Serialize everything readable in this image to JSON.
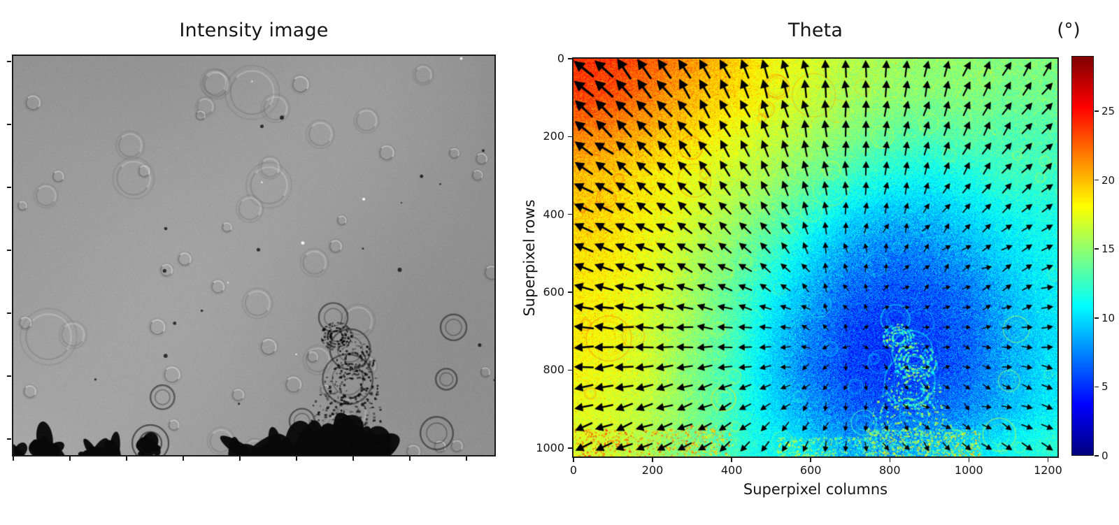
{
  "figure": {
    "background": "#ffffff",
    "description": "Two-panel scientific figure: grayscale intensity image (left) and Theta angle heatmap with quiver arrows and colorbar (right)"
  },
  "left_panel": {
    "title": "Intensity image"
  },
  "right_panel": {
    "title": "Theta",
    "xlabel": "Superpixel columns",
    "ylabel": "Superpixel rows",
    "colorbar_label": "(°)"
  },
  "chart_data": [
    {
      "type": "image",
      "title": "Intensity image",
      "description": "Grayscale brightfield/DIC microscopy frame: mid-gray field with faint circular bubble outlines, small dark specks, black debris blobs along the bottom edge and a concentric-ring splash feature at bottom center-right",
      "x_ticks_unlabeled": 9,
      "y_ticks_unlabeled": 7,
      "gray_base": "#949494"
    },
    {
      "type": "heatmap",
      "title": "Theta",
      "xlabel": "Superpixel columns",
      "ylabel": "Superpixel rows",
      "colormap": "jet",
      "x_range": [
        0,
        1224
      ],
      "y_range": [
        0,
        1022
      ],
      "x_ticks": [
        0,
        200,
        400,
        600,
        800,
        1000,
        1200
      ],
      "y_ticks": [
        0,
        200,
        400,
        600,
        800,
        1000
      ],
      "colorbar": {
        "label": "(°)",
        "ticks": [
          0,
          5,
          10,
          15,
          20,
          25
        ],
        "vmin": 0,
        "vmax": 28.9
      },
      "grid_cols": [
        0,
        100,
        200,
        300,
        400,
        500,
        600,
        700,
        800,
        900,
        1000,
        1100,
        1200
      ],
      "grid_rows": [
        0,
        100,
        200,
        300,
        400,
        500,
        600,
        700,
        800,
        900,
        1000
      ],
      "theta_grid": [
        [
          24.0,
          23.5,
          22.5,
          21.0,
          19.5,
          18.0,
          17.0,
          16.0,
          15.5,
          15.0,
          15.0,
          14.5,
          14.5
        ],
        [
          23.5,
          23.0,
          21.5,
          20.0,
          19.0,
          17.5,
          16.5,
          15.5,
          15.0,
          14.5,
          14.5,
          14.0,
          14.0
        ],
        [
          21.5,
          21.0,
          20.0,
          19.0,
          17.5,
          16.5,
          15.5,
          14.5,
          13.5,
          13.0,
          13.5,
          13.0,
          13.0
        ],
        [
          20.0,
          19.5,
          18.5,
          17.5,
          16.5,
          15.5,
          14.0,
          12.5,
          11.5,
          11.0,
          11.5,
          12.5,
          12.5
        ],
        [
          19.5,
          19.0,
          18.0,
          17.0,
          15.5,
          14.0,
          12.0,
          10.0,
          9.0,
          9.0,
          10.0,
          11.0,
          11.5
        ],
        [
          19.0,
          18.5,
          17.5,
          16.0,
          14.5,
          12.5,
          10.0,
          8.0,
          7.0,
          7.5,
          8.5,
          10.0,
          11.0
        ],
        [
          18.5,
          18.0,
          17.0,
          15.5,
          13.5,
          11.0,
          8.5,
          6.5,
          6.0,
          6.0,
          7.0,
          9.0,
          10.5
        ],
        [
          18.5,
          18.0,
          16.5,
          15.0,
          13.0,
          10.0,
          7.5,
          5.5,
          5.0,
          5.5,
          6.5,
          8.5,
          10.0
        ],
        [
          18.0,
          17.5,
          16.5,
          14.5,
          12.5,
          9.5,
          7.0,
          5.5,
          5.0,
          5.5,
          6.5,
          8.5,
          10.0
        ],
        [
          17.5,
          17.0,
          16.0,
          14.5,
          12.5,
          10.0,
          8.0,
          6.5,
          6.0,
          6.5,
          7.5,
          9.0,
          10.5
        ],
        [
          17.0,
          16.5,
          15.5,
          14.0,
          12.5,
          11.0,
          10.0,
          8.5,
          8.0,
          9.0,
          10.0,
          11.0,
          12.0
        ]
      ],
      "quiver": {
        "grid": [
          24,
          20
        ],
        "description": "Black arrows radiating outward from the low-theta (blue) region near column 720 / row 730; arrow length scales with theta (long up-left arrows in the orange top-left corner, short arrows inside the blue blob)",
        "center_col": 720,
        "center_row": 730,
        "color": "#000000"
      }
    }
  ]
}
